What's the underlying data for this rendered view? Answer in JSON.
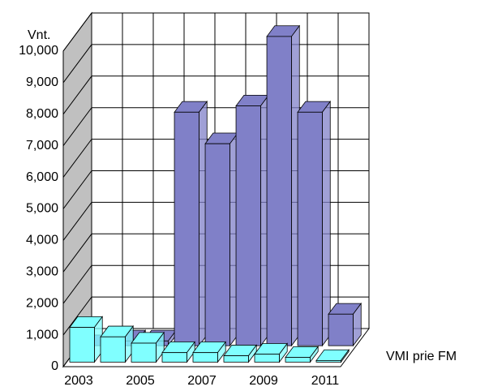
{
  "chart_data": {
    "type": "bar3d",
    "y_label": "Vnt.",
    "categories": [
      "2003",
      null,
      "2005",
      null,
      "2007",
      null,
      "2009",
      null,
      "2011"
    ],
    "series": [
      {
        "name": "VMI prie FM",
        "color": "#80ffff",
        "values": [
          1100,
          800,
          600,
          300,
          300,
          200,
          250,
          150,
          50
        ]
      },
      {
        "color": "#8080c8",
        "values": [
          0,
          150,
          150,
          7400,
          6400,
          7600,
          9800,
          7400,
          1000
        ]
      }
    ],
    "ylim": [
      0,
      10000
    ],
    "yticks": [
      0,
      {
        "value": 1000,
        "label": "1,000"
      },
      {
        "value": 2000,
        "label": "2,000"
      },
      {
        "value": 3000,
        "label": "3,000"
      },
      {
        "value": 4000,
        "label": "4,000"
      },
      {
        "value": 5000,
        "label": "5,000"
      },
      {
        "value": 6000,
        "label": "6,000"
      },
      {
        "value": 7000,
        "label": "7,000"
      },
      {
        "value": 8000,
        "label": "8,000"
      },
      {
        "value": 9000,
        "label": "9,000"
      },
      {
        "value": 10000,
        "label": "10,000"
      }
    ],
    "grid": true
  }
}
